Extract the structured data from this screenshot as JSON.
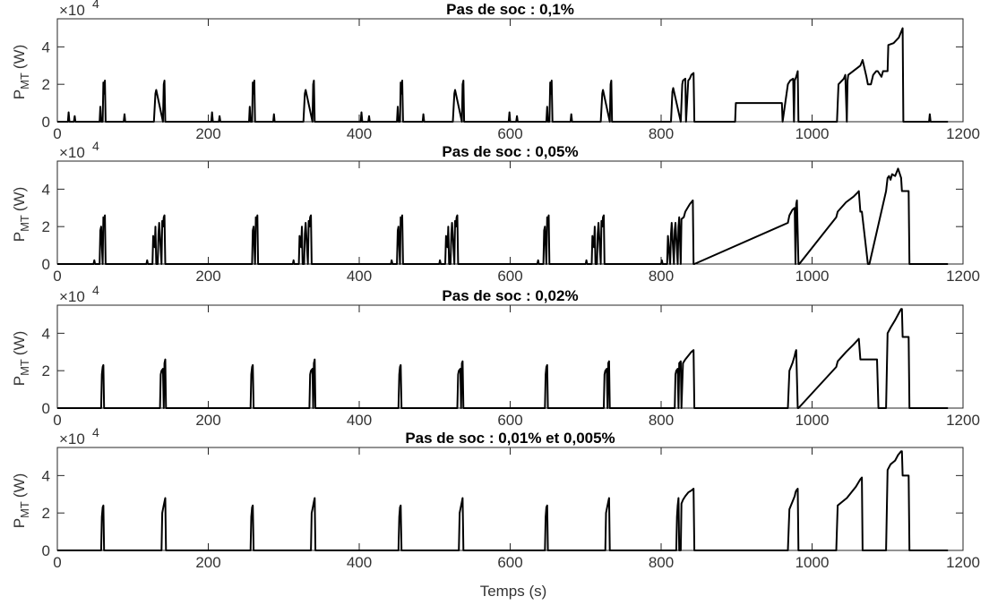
{
  "figure": {
    "xlabel": "Temps (s)"
  },
  "chart_data": [
    {
      "type": "line",
      "title": "Pas de soc : 0,1%",
      "ylabel_main": "P",
      "ylabel_sub": "MT",
      "ylabel_unit": "(W)",
      "exponent_base": "×10",
      "exponent_power": "4",
      "xlim": [
        0,
        1200
      ],
      "ylim": [
        0,
        5.5
      ],
      "y_scale": 10000,
      "xticks": [
        "0",
        "200",
        "400",
        "600",
        "800",
        "1000",
        "1200"
      ],
      "yticks": [
        "0",
        "2",
        "4"
      ],
      "series": [
        {
          "x": [
            0,
            14,
            15,
            16,
            22,
            23,
            24,
            56,
            57,
            58,
            60,
            61,
            62,
            63,
            64,
            88,
            89,
            90,
            128,
            130,
            131,
            140,
            141,
            142,
            143,
            204,
            205,
            206,
            214,
            215,
            216,
            254,
            255,
            256,
            258,
            259,
            260,
            261,
            262,
            286,
            287,
            288,
            326,
            328,
            329,
            338,
            339,
            340,
            341,
            402,
            403,
            404,
            412,
            413,
            414,
            450,
            451,
            452,
            454,
            455,
            456,
            457,
            458,
            484,
            485,
            486,
            524,
            526,
            527,
            536,
            537,
            538,
            539,
            598,
            599,
            600,
            608,
            609,
            610,
            648,
            649,
            650,
            652,
            653,
            654,
            655,
            656,
            680,
            681,
            682,
            720,
            722,
            723,
            732,
            733,
            734,
            735,
            813,
            815,
            816,
            826,
            828,
            829,
            832,
            833,
            836,
            838,
            840,
            843,
            844,
            845,
            898,
            899,
            960,
            961,
            968,
            971,
            975,
            976,
            977,
            979,
            981,
            982,
            1033,
            1035,
            1042,
            1044,
            1046,
            1047,
            1048,
            1064,
            1066,
            1067,
            1072,
            1074,
            1078,
            1081,
            1085,
            1087,
            1092,
            1094,
            1100,
            1101,
            1108,
            1115,
            1120,
            1121,
            1155,
            1156,
            1157,
            1180
          ],
          "y": [
            0,
            0,
            0.5,
            0,
            0,
            0.3,
            0,
            0,
            0.8,
            0,
            0,
            2.1,
            1.5,
            2.2,
            0,
            0,
            0.4,
            0,
            0,
            1.5,
            1.7,
            0,
            2.0,
            2.2,
            0,
            0,
            0.5,
            0,
            0,
            0.3,
            0,
            0,
            0.8,
            0,
            0,
            2.1,
            1.5,
            2.2,
            0,
            0,
            0.4,
            0,
            0,
            1.5,
            1.7,
            0,
            2.0,
            2.2,
            0,
            0,
            0.5,
            0,
            0,
            0.3,
            0,
            0,
            0.8,
            0,
            0,
            2.1,
            1.5,
            2.2,
            0,
            0,
            0.4,
            0,
            0,
            1.5,
            1.7,
            0,
            2.0,
            2.2,
            0,
            0,
            0.5,
            0,
            0,
            0.3,
            0,
            0,
            0.8,
            0,
            0,
            2.1,
            1.5,
            2.2,
            0,
            0,
            0.4,
            0,
            0,
            1.5,
            1.7,
            0,
            2.0,
            2.2,
            0,
            0,
            1.6,
            1.8,
            0,
            2.0,
            2.2,
            2.3,
            0,
            2.2,
            2.3,
            2.5,
            2.6,
            0,
            0,
            0,
            1.0,
            1.0,
            0,
            2.0,
            2.2,
            2.3,
            0,
            2.2,
            2.4,
            2.7,
            0,
            0,
            2.0,
            2.3,
            2.5,
            0,
            2.2,
            2.5,
            3.0,
            3.2,
            3.3,
            2.4,
            2.0,
            2.0,
            2.5,
            2.7,
            2.7,
            2.4,
            2.7,
            2.7,
            4.1,
            4.2,
            4.5,
            5.0,
            0,
            0,
            0.4,
            0,
            0
          ]
        }
      ]
    },
    {
      "type": "line",
      "title": "Pas de soc : 0,05%",
      "ylabel_main": "P",
      "ylabel_sub": "MT",
      "ylabel_unit": "(W)",
      "exponent_base": "×10",
      "exponent_power": "4",
      "xlim": [
        0,
        1200
      ],
      "ylim": [
        0,
        5.5
      ],
      "y_scale": 10000,
      "xticks": [
        "0",
        "200",
        "400",
        "600",
        "800",
        "1000",
        "1200"
      ],
      "yticks": [
        "0",
        "2",
        "4"
      ],
      "series": [
        {
          "x": [
            0,
            48,
            49,
            50,
            56,
            57,
            58,
            60,
            61,
            62,
            63,
            64,
            118,
            119,
            120,
            126,
            127,
            128,
            129,
            130,
            131,
            133,
            134,
            135,
            138,
            139,
            140,
            141,
            142,
            143,
            258,
            259,
            260,
            262,
            263,
            264,
            265,
            266,
            312,
            313,
            314,
            320,
            321,
            322,
            323,
            324,
            325,
            327,
            328,
            329,
            332,
            333,
            334,
            335,
            336,
            337,
            442,
            443,
            444,
            450,
            451,
            452,
            454,
            455,
            456,
            457,
            458,
            506,
            507,
            508,
            514,
            515,
            516,
            517,
            518,
            519,
            521,
            522,
            523,
            526,
            527,
            528,
            529,
            530,
            531,
            636,
            637,
            638,
            644,
            645,
            646,
            648,
            649,
            650,
            651,
            652,
            700,
            701,
            702,
            708,
            709,
            710,
            711,
            712,
            713,
            715,
            716,
            717,
            720,
            721,
            722,
            723,
            724,
            725,
            800,
            801,
            802,
            808,
            809,
            810,
            812,
            813,
            814,
            817,
            818,
            819,
            822,
            823,
            824,
            826,
            827,
            830,
            832,
            835,
            838,
            842,
            843,
            844,
            968,
            970,
            974,
            977,
            978,
            979,
            980,
            982,
            983,
            1032,
            1034,
            1045,
            1055,
            1060,
            1062,
            1064,
            1066,
            1074,
            1076,
            1098,
            1100,
            1102,
            1104,
            1106,
            1110,
            1114,
            1118,
            1119,
            1120,
            1128,
            1129,
            1180
          ],
          "y": [
            0,
            0,
            0.2,
            0,
            0,
            1.8,
            2.0,
            0,
            2.5,
            2.2,
            2.6,
            0,
            0,
            0.2,
            0,
            0,
            1.5,
            1.0,
            0.9,
            2.0,
            0,
            0,
            1.6,
            2.2,
            0,
            2.3,
            2.0,
            2.5,
            2.6,
            0,
            0,
            1.8,
            2.0,
            0,
            2.5,
            2.2,
            2.6,
            0,
            0,
            0.2,
            0,
            0,
            1.5,
            1.0,
            0.9,
            2.0,
            0,
            0,
            1.6,
            2.2,
            0,
            2.3,
            2.0,
            2.5,
            2.6,
            0,
            0,
            0.2,
            0,
            0,
            1.8,
            2.0,
            0,
            2.5,
            2.2,
            2.6,
            0,
            0,
            0.2,
            0,
            0,
            1.5,
            1.0,
            0.9,
            2.0,
            0,
            0,
            1.6,
            2.2,
            0,
            2.3,
            2.0,
            2.5,
            2.6,
            0,
            0,
            0.2,
            0,
            0,
            1.8,
            2.0,
            0,
            2.5,
            2.2,
            2.6,
            0,
            0,
            0.2,
            0,
            0,
            1.5,
            1.0,
            0.9,
            2.0,
            0,
            0,
            1.6,
            2.2,
            0,
            2.3,
            2.0,
            2.5,
            2.6,
            0,
            0,
            0.2,
            0,
            0,
            1.5,
            1.0,
            0,
            1.6,
            2.2,
            0,
            1.8,
            2.2,
            0,
            2.0,
            2.5,
            0,
            2.4,
            2.5,
            2.8,
            3.0,
            3.2,
            3.4,
            0,
            0,
            2.2,
            2.6,
            2.9,
            3.0,
            0,
            3.2,
            3.4,
            0,
            0,
            2.5,
            2.8,
            3.3,
            3.6,
            3.8,
            3.9,
            2.8,
            2.8,
            0,
            0,
            3.9,
            4.6,
            4.7,
            4.5,
            4.8,
            4.7,
            5.1,
            4.6,
            3.9,
            3.9,
            3.9,
            0,
            0
          ]
        }
      ]
    },
    {
      "type": "line",
      "title": "Pas de soc : 0,02%",
      "ylabel_main": "P",
      "ylabel_sub": "MT",
      "ylabel_unit": "(W)",
      "exponent_base": "×10",
      "exponent_power": "4",
      "xlim": [
        0,
        1200
      ],
      "ylim": [
        0,
        5.5
      ],
      "y_scale": 10000,
      "xticks": [
        "0",
        "200",
        "400",
        "600",
        "800",
        "1000",
        "1200"
      ],
      "yticks": [
        "0",
        "2",
        "4"
      ],
      "series": [
        {
          "x": [
            0,
            58,
            59,
            60,
            61,
            62,
            136,
            137,
            138,
            140,
            141,
            142,
            143,
            144,
            256,
            257,
            258,
            259,
            260,
            334,
            335,
            336,
            338,
            339,
            340,
            341,
            342,
            452,
            453,
            454,
            455,
            456,
            530,
            531,
            532,
            534,
            535,
            536,
            537,
            538,
            646,
            647,
            648,
            649,
            650,
            724,
            725,
            726,
            728,
            729,
            730,
            731,
            732,
            818,
            819,
            820,
            822,
            823,
            824,
            826,
            827,
            829,
            832,
            836,
            840,
            843,
            844,
            968,
            970,
            974,
            977,
            978,
            979,
            981,
            982,
            1032,
            1034,
            1045,
            1055,
            1062,
            1064,
            1066,
            1086,
            1088,
            1098,
            1100,
            1104,
            1110,
            1114,
            1118,
            1119,
            1120,
            1128,
            1129,
            1180
          ],
          "y": [
            0,
            0,
            1.8,
            2.2,
            2.3,
            0,
            0,
            1.8,
            2.0,
            2.1,
            0,
            2.4,
            2.6,
            0,
            0,
            1.8,
            2.2,
            2.3,
            0,
            0,
            1.8,
            2.0,
            2.1,
            0,
            2.4,
            2.6,
            0,
            0,
            1.8,
            2.2,
            2.3,
            0,
            0,
            1.8,
            2.0,
            2.1,
            0,
            2.4,
            2.5,
            0,
            0,
            1.8,
            2.2,
            2.3,
            0,
            0,
            1.8,
            2.0,
            2.1,
            0,
            2.4,
            2.5,
            0,
            0,
            1.8,
            2.0,
            2.1,
            0,
            2.4,
            2.5,
            0,
            2.4,
            2.6,
            2.8,
            3.0,
            3.1,
            0,
            0,
            2.0,
            2.4,
            2.8,
            3.0,
            3.1,
            0,
            0,
            2.2,
            2.5,
            3.0,
            3.4,
            3.7,
            2.6,
            2.6,
            2.6,
            0,
            0,
            4.0,
            4.3,
            4.7,
            5.0,
            5.3,
            5.3,
            3.8,
            3.8,
            0,
            0
          ]
        }
      ]
    },
    {
      "type": "line",
      "title": "Pas de soc : 0,01% et 0,005%",
      "ylabel_main": "P",
      "ylabel_sub": "MT",
      "ylabel_unit": "(W)",
      "exponent_base": "×10",
      "exponent_power": "4",
      "xlim": [
        0,
        1200
      ],
      "ylim": [
        0,
        5.5
      ],
      "y_scale": 10000,
      "xticks": [
        "0",
        "200",
        "400",
        "600",
        "800",
        "1000",
        "1200"
      ],
      "yticks": [
        "0",
        "2",
        "4"
      ],
      "series": [
        {
          "x": [
            0,
            58,
            59,
            60,
            61,
            62,
            138,
            139,
            140,
            142,
            143,
            144,
            256,
            257,
            258,
            259,
            260,
            336,
            337,
            338,
            340,
            341,
            342,
            452,
            453,
            454,
            455,
            456,
            532,
            533,
            534,
            536,
            537,
            538,
            646,
            647,
            648,
            649,
            650,
            726,
            727,
            728,
            730,
            731,
            732,
            820,
            821,
            822,
            823,
            824,
            826,
            827,
            829,
            832,
            836,
            840,
            843,
            844,
            968,
            970,
            974,
            977,
            978,
            979,
            981,
            982,
            1032,
            1034,
            1040,
            1046,
            1052,
            1058,
            1064,
            1066,
            1067,
            1098,
            1100,
            1104,
            1110,
            1114,
            1118,
            1119,
            1120,
            1128,
            1129,
            1180
          ],
          "y": [
            0,
            0,
            1.8,
            2.3,
            2.4,
            0,
            0,
            2.0,
            2.2,
            2.6,
            2.8,
            0,
            0,
            1.8,
            2.3,
            2.4,
            0,
            0,
            2.0,
            2.2,
            2.6,
            2.8,
            0,
            0,
            1.8,
            2.3,
            2.4,
            0,
            0,
            2.0,
            2.2,
            2.6,
            2.8,
            0,
            0,
            1.8,
            2.3,
            2.4,
            0,
            0,
            2.0,
            2.2,
            2.6,
            2.8,
            0,
            0,
            1.8,
            2.4,
            2.8,
            0,
            0,
            2.5,
            2.7,
            2.9,
            3.1,
            3.2,
            3.3,
            0,
            0,
            2.2,
            2.6,
            2.9,
            3.1,
            3.2,
            3.3,
            0,
            0,
            2.4,
            2.6,
            2.8,
            3.1,
            3.4,
            3.8,
            3.9,
            0,
            0,
            4.3,
            4.6,
            4.8,
            5.1,
            5.3,
            5.3,
            4.0,
            4.0,
            0,
            0
          ]
        }
      ]
    }
  ]
}
